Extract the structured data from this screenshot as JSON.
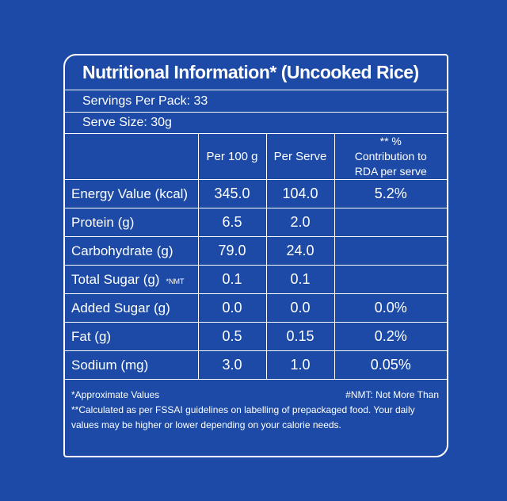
{
  "title": "Nutritional Information* (Uncooked Rice)",
  "servings": "Servings Per Pack: 33",
  "serve_size": "Serve Size: 30g",
  "table": {
    "columns": [
      "Per 100 g",
      "Per Serve",
      "** % Contribution to RDA per serve"
    ],
    "rows": [
      {
        "name": "Energy Value (kcal)",
        "per_100g": "345.0",
        "per_serve": "104.0",
        "rda": "5.2%"
      },
      {
        "name": "Protein (g)",
        "per_100g": "6.5",
        "per_serve": "2.0"
      },
      {
        "name": "Carbohydrate (g)",
        "per_100g": "79.0",
        "per_serve": "24.0"
      },
      {
        "name": "Total Sugar (g)",
        "mark": "*NMT",
        "per_100g": "0.1",
        "per_serve": "0.1"
      },
      {
        "name": "Added Sugar (g)",
        "per_100g": "0.0",
        "per_serve": "0.0",
        "rda": "0.0%"
      },
      {
        "name": "Fat (g)",
        "per_100g": "0.5",
        "per_serve": "0.15",
        "rda": "0.2%"
      },
      {
        "name": "Sodium (mg)",
        "per_100g": "3.0",
        "per_serve": "1.0",
        "rda": "0.05%"
      }
    ]
  },
  "footer": {
    "approx": "*Approximate Values",
    "nmt": "#NMT: Not More Than",
    "calc": "**Calculated as per FSSAI guidelines on labelling of prepackaged food. Your daily values may be higher or lower depending on your calorie needs."
  }
}
